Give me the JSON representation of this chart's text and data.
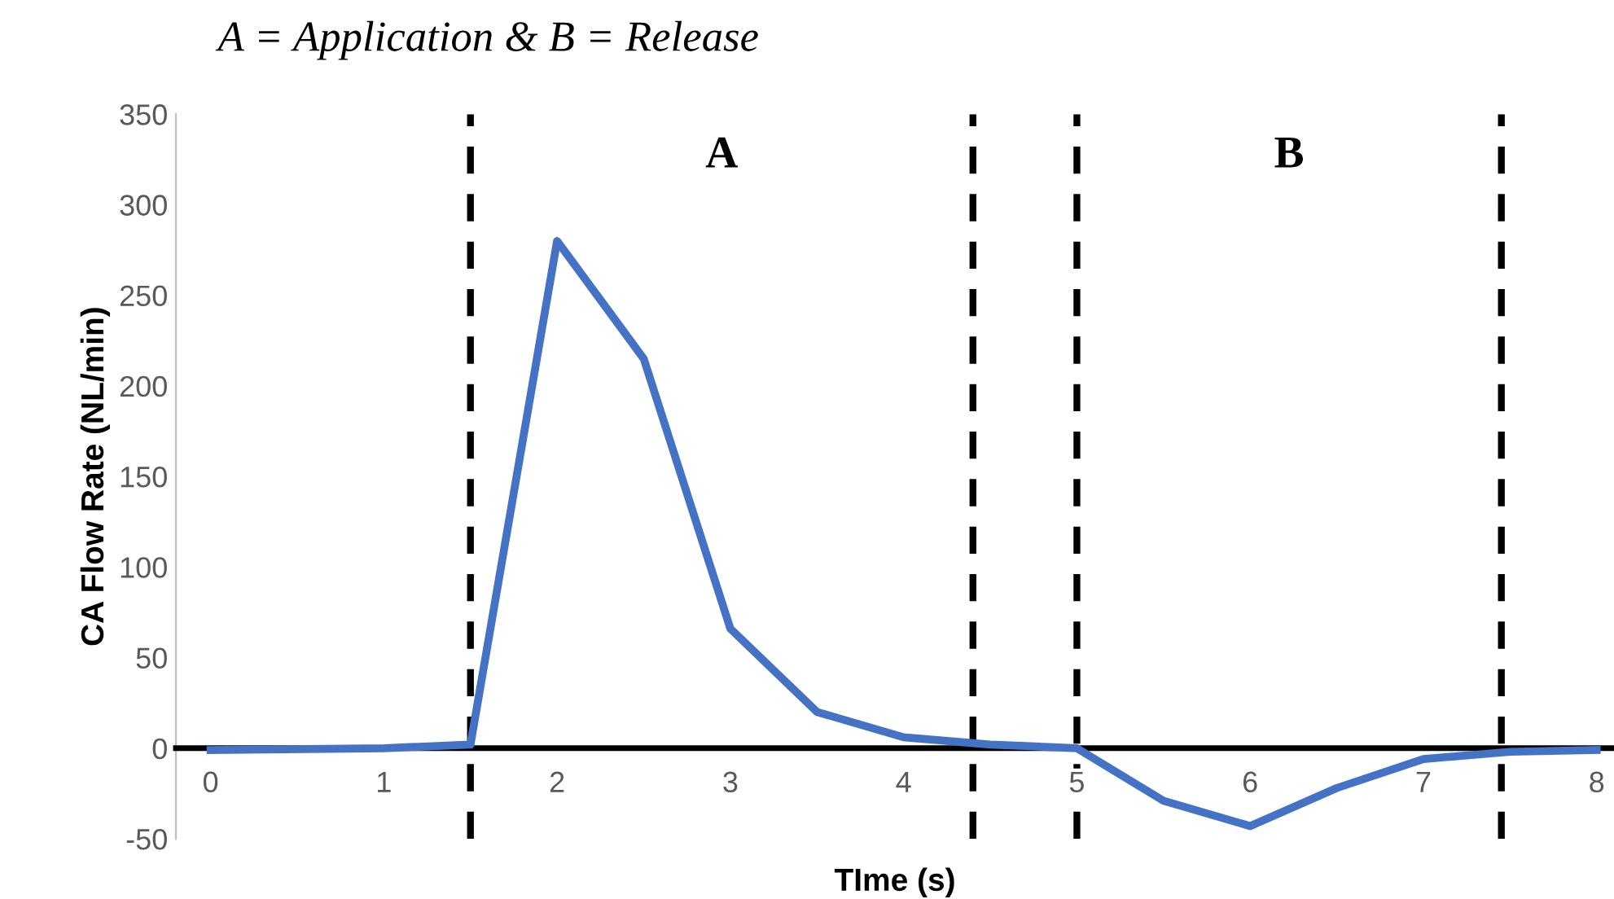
{
  "chart_data": {
    "type": "line",
    "title": "A = Application & B = Release",
    "xlabel": "TIme (s)",
    "ylabel": "CA Flow Rate (NL/min)",
    "x": [
      0,
      1,
      1.5,
      2,
      2.5,
      3,
      3.5,
      4,
      4.5,
      5,
      5.5,
      6,
      6.5,
      7,
      7.5,
      8
    ],
    "series": [
      {
        "color": "#4472c4",
        "values": [
          -1,
          0,
          2,
          280,
          215,
          66,
          20,
          6,
          2,
          0,
          -29,
          -43,
          -22,
          -6,
          -2,
          -1
        ]
      }
    ],
    "xlim": [
      -0.2,
      8.1
    ],
    "xticks": [
      0,
      1,
      2,
      3,
      4,
      5,
      6,
      7,
      8
    ],
    "ylim": [
      -50,
      350
    ],
    "yticks": [
      -50,
      0,
      50,
      100,
      150,
      200,
      250,
      300,
      350
    ],
    "ref_lines": [
      {
        "axis": "x",
        "value": 1.5,
        "color": "#000000",
        "line_style": "dashed"
      },
      {
        "axis": "x",
        "value": 4.4,
        "color": "#000000",
        "line_style": "dashed"
      },
      {
        "axis": "x",
        "value": 5.0,
        "color": "#000000",
        "line_style": "dashed"
      },
      {
        "axis": "x",
        "value": 7.45,
        "color": "#000000",
        "line_style": "dashed"
      }
    ],
    "annotations": [
      "A",
      "B"
    ],
    "grid": false,
    "legend": false,
    "marker": "none",
    "line_style": "solid"
  }
}
